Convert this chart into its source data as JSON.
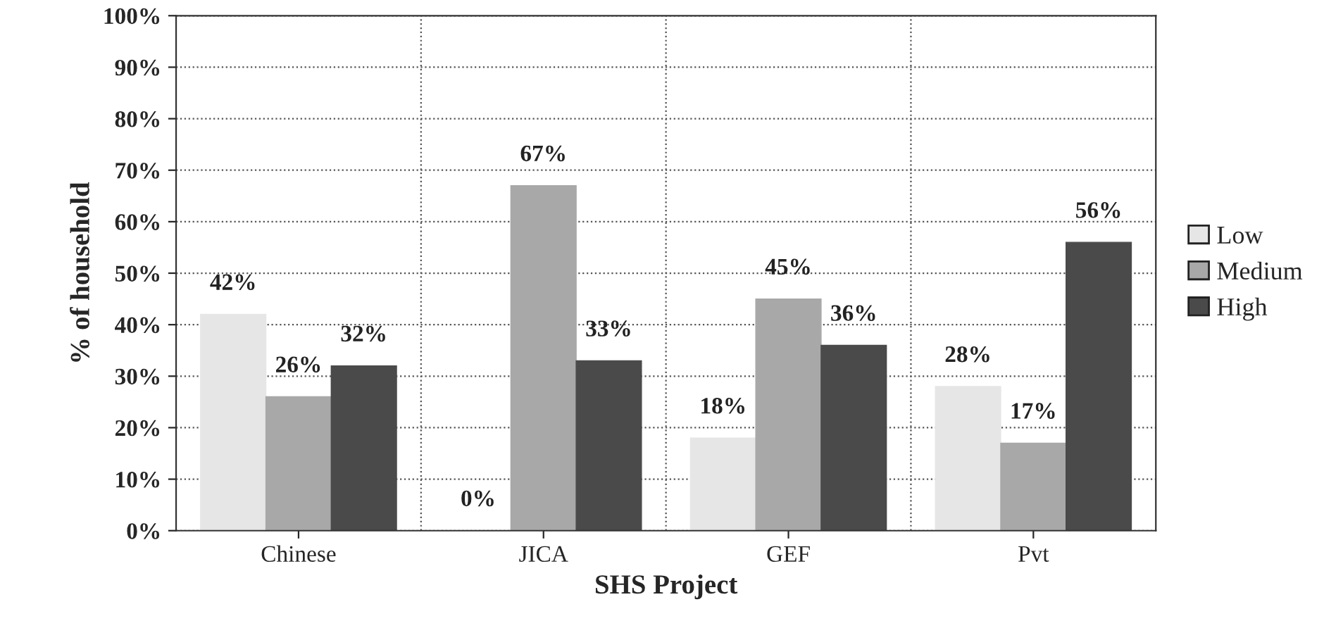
{
  "chart_data": {
    "type": "bar",
    "xlabel": "SHS Project",
    "ylabel": "% of household",
    "categories": [
      "Chinese",
      "JICA",
      "GEF",
      "Pvt"
    ],
    "series": [
      {
        "name": "Low",
        "color": "#e6e6e6",
        "values": [
          42,
          0,
          18,
          28
        ],
        "value_labels": [
          "42%",
          "0%",
          "18%",
          "28%"
        ]
      },
      {
        "name": "Medium",
        "color": "#a8a8a8",
        "values": [
          26,
          67,
          45,
          17
        ],
        "value_labels": [
          "26%",
          "67%",
          "45%",
          "17%"
        ]
      },
      {
        "name": "High",
        "color": "#4a4a4a",
        "values": [
          32,
          33,
          36,
          56
        ],
        "value_labels": [
          "32%",
          "33%",
          "36%",
          "56%"
        ]
      }
    ],
    "ylim": [
      0,
      100
    ],
    "yticks": [
      {
        "value": 0,
        "label": "0%"
      },
      {
        "value": 10,
        "label": "10%"
      },
      {
        "value": 20,
        "label": "20%"
      },
      {
        "value": 30,
        "label": "30%"
      },
      {
        "value": 40,
        "label": "40%"
      },
      {
        "value": 50,
        "label": "50%"
      },
      {
        "value": 60,
        "label": "60%"
      },
      {
        "value": 70,
        "label": "70%"
      },
      {
        "value": 80,
        "label": "80%"
      },
      {
        "value": 90,
        "label": "90%"
      },
      {
        "value": 100,
        "label": "100%"
      }
    ],
    "grid": "y",
    "legend": "right"
  }
}
